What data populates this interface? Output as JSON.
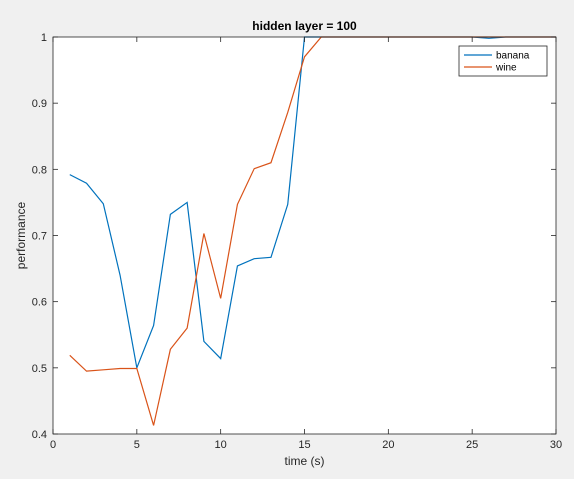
{
  "chart_data": {
    "type": "line",
    "title": "hidden layer = 100",
    "xlabel": "time (s)",
    "ylabel": "performance",
    "xlim": [
      0,
      30
    ],
    "ylim": [
      0.4,
      1.0
    ],
    "xticks": [
      0,
      5,
      10,
      15,
      20,
      25,
      30
    ],
    "yticks": [
      0.4,
      0.5,
      0.6,
      0.7,
      0.8,
      0.9,
      1.0
    ],
    "xtick_labels": [
      "0",
      "5",
      "10",
      "15",
      "20",
      "25",
      "30"
    ],
    "ytick_labels": [
      "0.4",
      "0.5",
      "0.6",
      "0.7",
      "0.8",
      "0.9",
      "1"
    ],
    "grid": false,
    "legend_position": "top-right",
    "x": [
      1,
      2,
      3,
      4,
      5,
      6,
      7,
      8,
      9,
      10,
      11,
      12,
      13,
      14,
      15,
      16,
      17,
      18,
      19,
      20,
      21,
      22,
      23,
      24,
      25,
      26,
      27,
      28,
      29,
      30
    ],
    "series": [
      {
        "name": "banana",
        "color": "#0072bd",
        "values": [
          0.792,
          0.779,
          0.748,
          0.64,
          0.5,
          0.564,
          0.732,
          0.75,
          0.54,
          0.514,
          0.654,
          0.665,
          0.667,
          0.747,
          1.0,
          1.0,
          1.0,
          1.0,
          1.0,
          1.0,
          1.0,
          1.0,
          1.0,
          1.0,
          1.0,
          0.998,
          1.0,
          1.0,
          1.0,
          1.0
        ]
      },
      {
        "name": "wine",
        "color": "#d95319",
        "values": [
          0.519,
          0.495,
          0.497,
          0.499,
          0.499,
          0.413,
          0.528,
          0.56,
          0.703,
          0.605,
          0.747,
          0.801,
          0.81,
          0.886,
          0.97,
          1.0,
          1.0,
          1.0,
          1.0,
          1.0,
          1.0,
          1.0,
          1.0,
          1.0,
          1.0,
          1.0,
          1.0,
          1.0,
          1.0,
          1.0
        ]
      }
    ]
  }
}
